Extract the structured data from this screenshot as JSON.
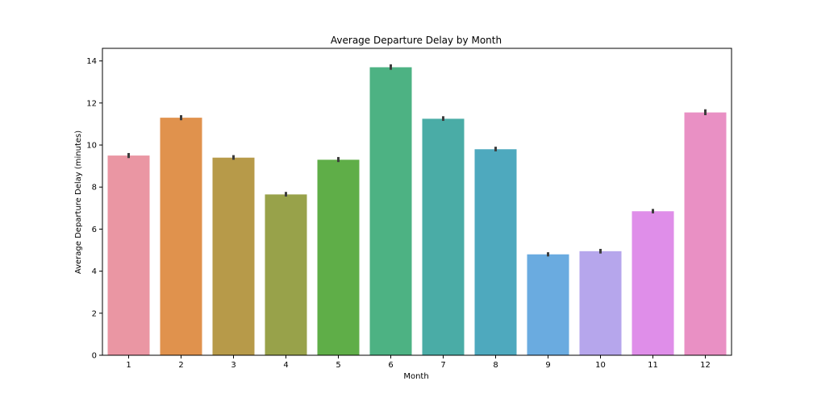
{
  "chart_data": {
    "type": "bar",
    "title": "Average Departure Delay by Month",
    "xlabel": "Month",
    "ylabel": "Average Departure Delay (minutes)",
    "categories": [
      "1",
      "2",
      "3",
      "4",
      "5",
      "6",
      "7",
      "8",
      "9",
      "10",
      "11",
      "12"
    ],
    "values": [
      9.5,
      11.3,
      9.4,
      7.65,
      9.3,
      13.7,
      11.25,
      9.8,
      4.8,
      4.95,
      6.85,
      11.55
    ],
    "error_low": [
      9.38,
      11.18,
      9.3,
      7.55,
      9.19,
      13.58,
      11.15,
      9.7,
      4.7,
      4.84,
      6.75,
      11.42
    ],
    "error_high": [
      9.62,
      11.42,
      9.52,
      7.77,
      9.43,
      13.84,
      11.37,
      9.92,
      4.9,
      5.06,
      6.96,
      11.7
    ],
    "colors": [
      "#ea96a3",
      "#e0924d",
      "#b79a49",
      "#98a24a",
      "#5fae48",
      "#4db283",
      "#4aaca6",
      "#4ea9be",
      "#6aabe0",
      "#b6a6ec",
      "#df8ee9",
      "#e990c4"
    ],
    "error_color": "#3d3d3d",
    "ylim": [
      0,
      14.6
    ],
    "yticks": [
      0,
      2,
      4,
      6,
      8,
      10,
      12,
      14
    ],
    "grid": false,
    "legend": "none"
  }
}
